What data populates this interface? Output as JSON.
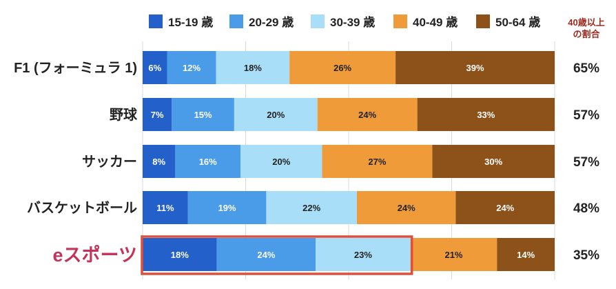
{
  "chart_data": {
    "type": "bar",
    "orientation": "horizontal",
    "stacked": true,
    "normalized_percent": true,
    "title": "",
    "xlabel": "",
    "ylabel": "",
    "xlim": [
      0,
      100
    ],
    "grid": true,
    "legend_position": "top",
    "categories": [
      "F1 (フォーミュラ 1)",
      "野球",
      "サッカー",
      "バスケットボール",
      "eスポーツ"
    ],
    "highlight_category": "eスポーツ",
    "series": [
      {
        "name": "15-19 歳",
        "color": "#2460c9",
        "values": [
          6,
          7,
          8,
          11,
          18
        ],
        "labels": [
          "6%",
          "7%",
          "8%",
          "11%",
          "18%"
        ]
      },
      {
        "name": "20-29 歳",
        "color": "#4a9be8",
        "values": [
          12,
          15,
          16,
          19,
          24
        ],
        "labels": [
          "12%",
          "15%",
          "16%",
          "19%",
          "24%"
        ]
      },
      {
        "name": "30-39 歳",
        "color": "#a9def8",
        "values": [
          18,
          20,
          20,
          22,
          23
        ],
        "labels": [
          "18%",
          "20%",
          "20%",
          "22%",
          "23%"
        ]
      },
      {
        "name": "40-49 歳",
        "color": "#f09b3a",
        "values": [
          26,
          24,
          27,
          24,
          21
        ],
        "labels": [
          "26%",
          "24%",
          "27%",
          "24%",
          "21%"
        ]
      },
      {
        "name": "50-64 歳",
        "color": "#8c5219",
        "values": [
          39,
          33,
          30,
          24,
          14
        ],
        "labels": [
          "39%",
          "33%",
          "30%",
          "24%",
          "14%"
        ]
      }
    ],
    "side_column": {
      "header_lines": [
        "40歳以上",
        "の割合"
      ],
      "values": [
        "65%",
        "57%",
        "57%",
        "48%",
        "35%"
      ],
      "header_color": "#9c2a1e"
    },
    "highlight_color": "#e04f3c",
    "highlight_label_color": "#c3335a"
  }
}
